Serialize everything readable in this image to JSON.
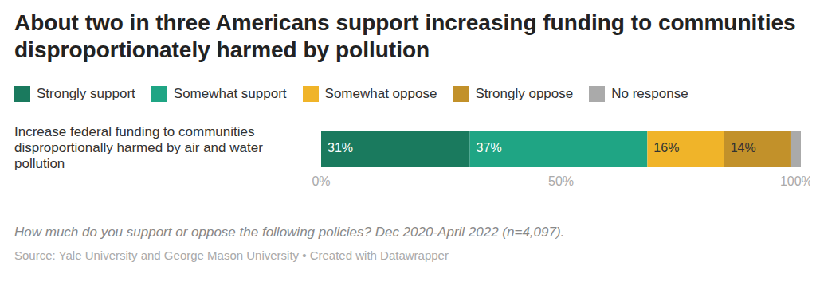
{
  "chart_data": {
    "type": "bar",
    "orientation": "horizontal",
    "stacked": true,
    "title": "About two in three Americans support increasing funding to communities disproportionately harmed by pollution",
    "categories": [
      "Increase federal funding to communities disproportionally harmed by air and water pollution"
    ],
    "series": [
      {
        "name": "Strongly support",
        "color": "#1a7a5e",
        "values": [
          31
        ],
        "data_labels": true,
        "value_labels": [
          "31%"
        ]
      },
      {
        "name": "Somewhat support",
        "color": "#1fa584",
        "values": [
          37
        ],
        "data_labels": true,
        "value_labels": [
          "37%"
        ]
      },
      {
        "name": "Somewhat oppose",
        "color": "#f0b429",
        "values": [
          16
        ],
        "data_labels": true,
        "value_labels": [
          "16%"
        ]
      },
      {
        "name": "Strongly oppose",
        "color": "#c2912a",
        "values": [
          14
        ],
        "data_labels": true,
        "value_labels": [
          "14%"
        ]
      },
      {
        "name": "No response",
        "color": "#aaaaaa",
        "values": [
          2
        ]
      }
    ],
    "xlim": [
      0,
      100
    ],
    "xticks": [
      {
        "value": 0,
        "label": "0%"
      },
      {
        "value": 50,
        "label": "50%"
      },
      {
        "value": 100,
        "label": "100%"
      }
    ],
    "legend": "top",
    "caption": "How much do you support or oppose the following policies? Dec 2020-April 2022 (n=4,097).",
    "source": "Source: Yale University and George Mason University • Created with Datawrapper"
  }
}
